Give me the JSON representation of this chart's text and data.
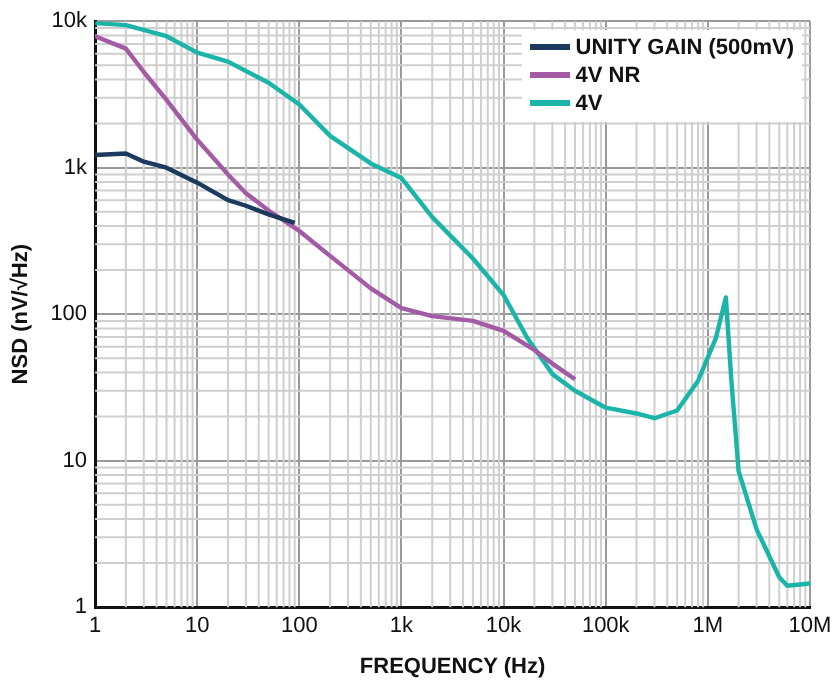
{
  "chart_data": {
    "type": "line",
    "xlabel": "FREQUENCY (Hz)",
    "ylabel": "NSD (nV/√Hz)",
    "log": "xy",
    "grid": true,
    "legend": "top right",
    "marker": "none",
    "line_style": "solid",
    "xlim": [
      1,
      10000000
    ],
    "ylim": [
      1,
      10000
    ],
    "xticks": [
      1,
      10,
      100,
      {
        "value": 1000,
        "label": "1k"
      },
      {
        "value": 10000,
        "label": "10k"
      },
      {
        "value": 100000,
        "label": "100k"
      },
      {
        "value": 1000000,
        "label": "1M"
      },
      {
        "value": 10000000,
        "label": "10M"
      }
    ],
    "yticks": [
      1,
      10,
      100,
      {
        "value": 1000,
        "label": "1k"
      },
      {
        "value": 10000,
        "label": "10k"
      }
    ],
    "series": [
      {
        "name": "UNITY GAIN (500mV)",
        "color": "#1b3a5e",
        "x": [
          1,
          2,
          3,
          5,
          10,
          20,
          30,
          50,
          90
        ],
        "values": [
          1220,
          1250,
          1100,
          1000,
          790,
          600,
          550,
          480,
          420
        ]
      },
      {
        "name": "4V NR",
        "color": "#a35ba6",
        "x": [
          1,
          2,
          3,
          5,
          10,
          20,
          30,
          50,
          100,
          200,
          500,
          1000,
          2000,
          5000,
          10000,
          20000,
          30000,
          50000
        ],
        "values": [
          7900,
          6500,
          4500,
          2900,
          1550,
          900,
          670,
          510,
          370,
          250,
          150,
          110,
          97,
          90,
          77,
          57,
          46,
          36
        ]
      },
      {
        "name": "4V",
        "color": "#1ab5a8",
        "x": [
          1,
          2,
          5,
          10,
          20,
          50,
          100,
          200,
          500,
          1000,
          2000,
          5000,
          10000,
          17000,
          30000,
          50000,
          100000,
          200000,
          300000,
          500000,
          800000,
          1200000,
          1500000,
          1700000,
          2000000,
          3000000,
          5000000,
          6000000,
          10000000
        ],
        "values": [
          9700,
          9400,
          7900,
          6100,
          5300,
          3800,
          2700,
          1650,
          1070,
          850,
          460,
          240,
          135,
          69,
          39,
          30,
          23,
          21,
          19.5,
          22,
          35,
          69,
          130,
          35,
          8.5,
          3.4,
          1.6,
          1.4,
          1.45
        ]
      }
    ]
  }
}
